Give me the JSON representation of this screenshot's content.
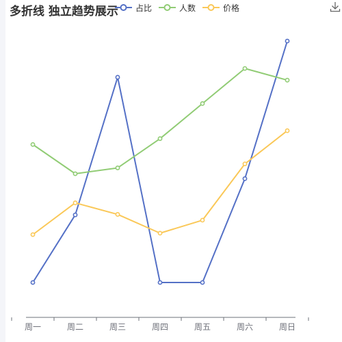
{
  "chart_data": {
    "type": "line",
    "title": "多折线 独立趋势展示",
    "categories": [
      "周一",
      "周二",
      "周三",
      "周四",
      "周五",
      "周六",
      "周日"
    ],
    "series": [
      {
        "name": "占比",
        "color": "#5470c6",
        "values": [
          0.0,
          0.28,
          0.85,
          0.0,
          0.0,
          0.43,
          1.0
        ]
      },
      {
        "name": "人数",
        "color": "#91cc75",
        "values": [
          0.25,
          0.0,
          0.05,
          0.3,
          0.6,
          0.9,
          0.8
        ]
      },
      {
        "name": "价格",
        "color": "#fac858",
        "values": [
          0.0,
          0.22,
          0.14,
          0.01,
          0.1,
          0.49,
          0.72
        ]
      }
    ],
    "legend_position": "top",
    "grid": false
  },
  "toolbox": {
    "download_icon": "download-icon"
  }
}
